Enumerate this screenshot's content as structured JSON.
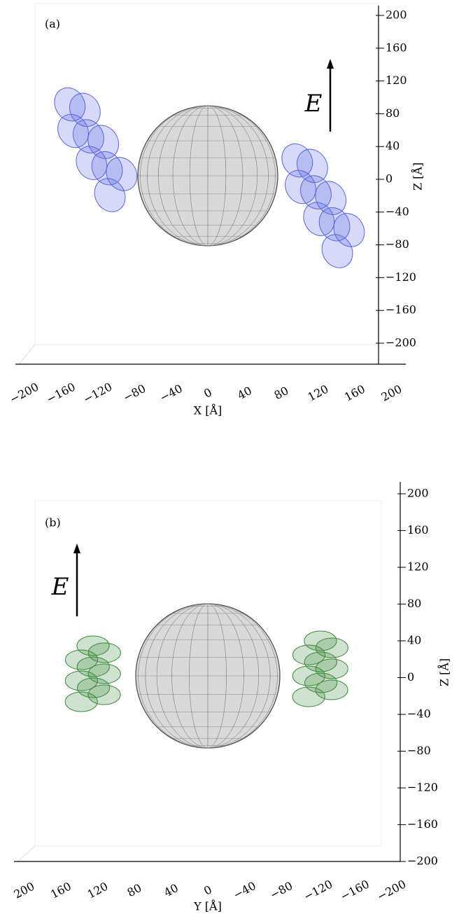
{
  "chart_data": [
    {
      "type": "3d",
      "panel_label": "(a)",
      "annotation": "E",
      "xlabel": "X [Å]",
      "zlabel": "Z [Å]",
      "xlim": [
        -200,
        200
      ],
      "xticks": [
        {
          "value": -200,
          "label": "−200"
        },
        {
          "value": -160,
          "label": "−160"
        },
        {
          "value": -120,
          "label": "−120"
        },
        {
          "value": -80,
          "label": "−80"
        },
        {
          "value": -40,
          "label": "−40"
        },
        0,
        40,
        80,
        120,
        160,
        200
      ],
      "zlim": [
        -200,
        200
      ],
      "zticks": [
        {
          "value": -200,
          "label": "−200"
        },
        {
          "value": -160,
          "label": "−160"
        },
        {
          "value": -120,
          "label": "−120"
        },
        {
          "value": -80,
          "label": "−80"
        },
        {
          "value": -40,
          "label": "−40"
        },
        0,
        40,
        80,
        120,
        160,
        200
      ],
      "color": "#5a66e0"
    },
    {
      "type": "3d",
      "panel_label": "(b)",
      "annotation": "E",
      "xlabel": "Y [Å]",
      "zlabel": "Z [Å]",
      "xlim": [
        200,
        -200
      ],
      "xticks": [
        200,
        160,
        120,
        80,
        40,
        0,
        {
          "value": -40,
          "label": "−40"
        },
        {
          "value": -80,
          "label": "−80"
        },
        {
          "value": -120,
          "label": "−120"
        },
        {
          "value": -160,
          "label": "−160"
        },
        {
          "value": -200,
          "label": "−200"
        }
      ],
      "zlim": [
        -200,
        200
      ],
      "zticks": [
        {
          "value": -200,
          "label": "−200"
        },
        {
          "value": -160,
          "label": "−160"
        },
        {
          "value": -120,
          "label": "−120"
        },
        {
          "value": -80,
          "label": "−80"
        },
        {
          "value": -40,
          "label": "−40"
        },
        0,
        40,
        80,
        120,
        160,
        200
      ],
      "color": "#3f8a3f"
    }
  ]
}
